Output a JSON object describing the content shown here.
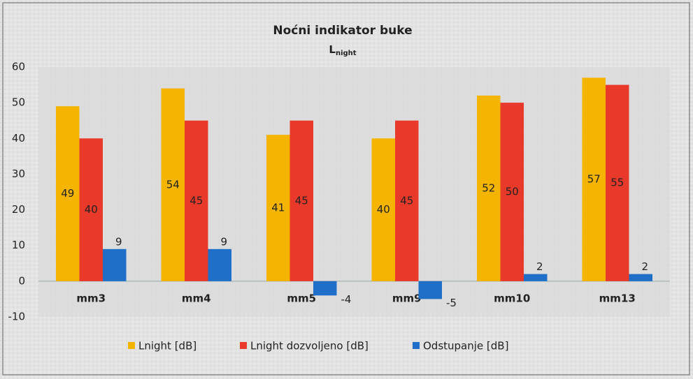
{
  "chart_data": {
    "type": "bar",
    "title": "Noćni indikator buke",
    "subtitle": [
      "L",
      "night"
    ],
    "categories": [
      "mm3",
      "mm4",
      "mm5",
      "mm9",
      "mm10",
      "mm13"
    ],
    "series": [
      {
        "name": "Lnight [dB]",
        "color": "#f5b400",
        "values": [
          49,
          54,
          41,
          40,
          52,
          57
        ]
      },
      {
        "name": "Lnight dozvoljeno [dB]",
        "color": "#e8392a",
        "values": [
          40,
          45,
          45,
          45,
          50,
          55
        ]
      },
      {
        "name": "Odstupanje [dB]",
        "color": "#1f6fc8",
        "values": [
          9,
          9,
          -4,
          -5,
          2,
          2
        ]
      }
    ],
    "ylim": [
      -10,
      60
    ],
    "yticks": [
      -10,
      0,
      10,
      20,
      30,
      40,
      50,
      60
    ],
    "legend": "bottom"
  }
}
